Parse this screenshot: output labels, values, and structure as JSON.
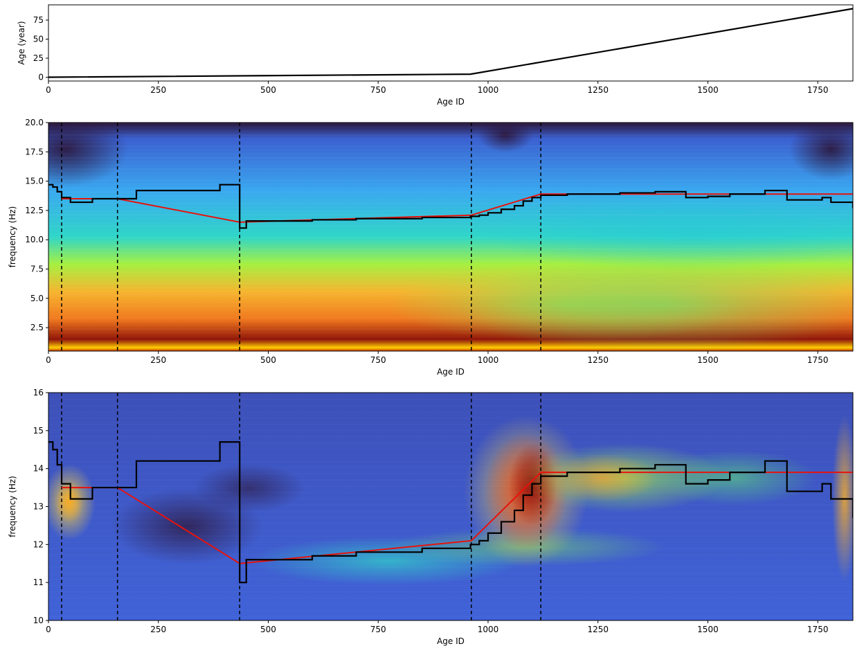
{
  "chart_data": [
    {
      "type": "line",
      "xlabel": "Age ID",
      "ylabel": "Age (year)",
      "xlim": [
        0,
        1830
      ],
      "ylim": [
        -5,
        95
      ],
      "xticks": [
        0,
        250,
        500,
        750,
        1000,
        1250,
        1500,
        1750
      ],
      "yticks": [
        0,
        25,
        50,
        75
      ],
      "grid": false,
      "series": [
        {
          "color": "#000000",
          "x": [
            0,
            960,
            1830
          ],
          "y": [
            0,
            4,
            90
          ]
        }
      ]
    },
    {
      "type": "heatmap",
      "xlabel": "Age ID",
      "ylabel": "frequency (Hz)",
      "xlim": [
        0,
        1830
      ],
      "ylim": [
        0.5,
        20
      ],
      "xticks": [
        0,
        250,
        500,
        750,
        1000,
        1250,
        1500,
        1750
      ],
      "yticks": [
        2.5,
        5.0,
        7.5,
        10.0,
        12.5,
        15.0,
        17.5,
        20.0
      ],
      "colormap": "turbo",
      "vlines": [
        30,
        157,
        435,
        962,
        1120
      ],
      "peak_frequency": {
        "x": [
          0,
          10,
          20,
          30,
          50,
          100,
          150,
          190,
          200,
          380,
          390,
          435,
          450,
          550,
          600,
          700,
          850,
          960,
          980,
          1000,
          1030,
          1060,
          1080,
          1100,
          1120,
          1180,
          1300,
          1380,
          1450,
          1500,
          1550,
          1630,
          1680,
          1760,
          1780,
          1830
        ],
        "y": [
          14.7,
          14.5,
          14.1,
          13.6,
          13.2,
          13.5,
          13.5,
          13.5,
          14.2,
          14.2,
          14.7,
          11.0,
          11.6,
          11.6,
          11.7,
          11.8,
          11.9,
          12.0,
          12.1,
          12.3,
          12.6,
          12.9,
          13.3,
          13.6,
          13.8,
          13.9,
          14.0,
          14.1,
          13.6,
          13.7,
          13.9,
          14.2,
          13.4,
          13.6,
          13.2,
          12.7
        ]
      },
      "segment_fit": {
        "x": [
          30,
          157,
          435,
          962,
          1120,
          1830
        ],
        "y": [
          13.5,
          13.5,
          11.5,
          12.1,
          13.9,
          13.9
        ]
      }
    },
    {
      "type": "heatmap",
      "xlabel": "Age ID",
      "ylabel": "frequency (Hz)",
      "xlim": [
        0,
        1830
      ],
      "ylim": [
        10,
        16
      ],
      "xticks": [
        0,
        250,
        500,
        750,
        1000,
        1250,
        1500,
        1750
      ],
      "yticks": [
        10,
        11,
        12,
        13,
        14,
        15,
        16
      ],
      "colormap": "turbo",
      "vlines": [
        30,
        157,
        435,
        962,
        1120
      ],
      "peak_frequency": {
        "x": [
          0,
          10,
          20,
          30,
          50,
          100,
          150,
          190,
          200,
          380,
          390,
          435,
          450,
          550,
          600,
          700,
          850,
          960,
          980,
          1000,
          1030,
          1060,
          1080,
          1100,
          1120,
          1180,
          1300,
          1380,
          1450,
          1500,
          1550,
          1630,
          1680,
          1760,
          1780,
          1830
        ],
        "y": [
          14.7,
          14.5,
          14.1,
          13.6,
          13.2,
          13.5,
          13.5,
          13.5,
          14.2,
          14.2,
          14.7,
          11.0,
          11.6,
          11.6,
          11.7,
          11.8,
          11.9,
          12.0,
          12.1,
          12.3,
          12.6,
          12.9,
          13.3,
          13.6,
          13.8,
          13.9,
          14.0,
          14.1,
          13.6,
          13.7,
          13.9,
          14.2,
          13.4,
          13.6,
          13.2,
          12.7
        ]
      },
      "segment_fit": {
        "x": [
          30,
          157,
          435,
          962,
          1120,
          1830
        ],
        "y": [
          13.5,
          13.5,
          11.5,
          12.1,
          13.9,
          13.9
        ]
      }
    }
  ]
}
